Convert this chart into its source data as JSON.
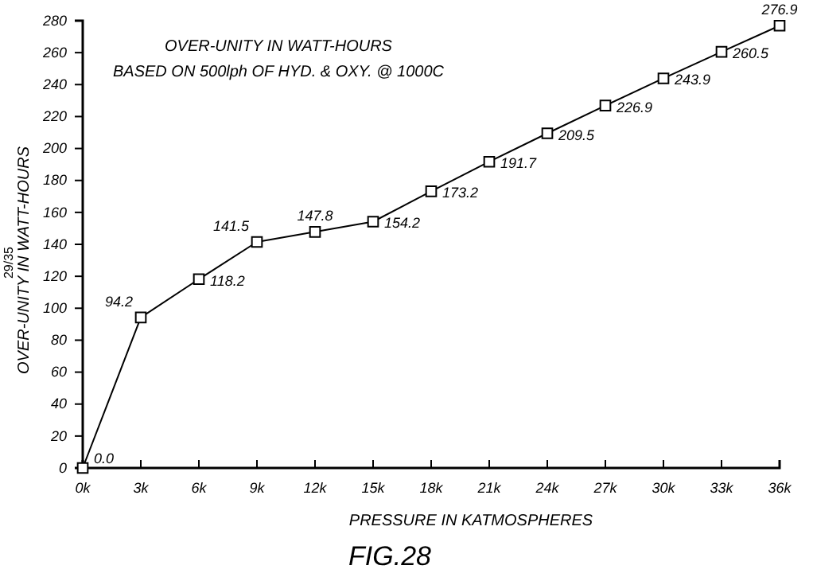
{
  "chart_data": {
    "type": "line",
    "title": "OVER-UNITY IN WATT-HOURS",
    "subtitle": "BASED ON 500lph OF HYD. & OXY. @ 1000C",
    "xlabel": "PRESSURE IN KATMOSPHERES",
    "ylabel": "OVER-UNITY IN WATT-HOURS",
    "annotations": [
      "29/35",
      "FIG.28"
    ],
    "x": [
      0,
      3,
      6,
      9,
      12,
      15,
      18,
      21,
      24,
      27,
      30,
      33,
      36
    ],
    "series": [
      {
        "color": "#000000",
        "values": [
          0,
          94.2,
          118.2,
          141.5,
          147.8,
          154.2,
          173.2,
          191.7,
          209.5,
          226.9,
          243.9,
          260.5,
          276.9
        ],
        "value_labels": [
          "0.0",
          "94.2",
          "118.2",
          "141.5",
          "147.8",
          "154.2",
          "173.2",
          "191.7",
          "209.5",
          "226.9",
          "243.9",
          "260.5",
          "276.9"
        ]
      }
    ],
    "xlim": [
      0,
      36
    ],
    "ylim": [
      0,
      280
    ],
    "xticks": [
      {
        "value": 0,
        "label": "0k"
      },
      {
        "value": 3,
        "label": "3k"
      },
      {
        "value": 6,
        "label": "6k"
      },
      {
        "value": 9,
        "label": "9k"
      },
      {
        "value": 12,
        "label": "12k"
      },
      {
        "value": 15,
        "label": "15k"
      },
      {
        "value": 18,
        "label": "18k"
      },
      {
        "value": 21,
        "label": "21k"
      },
      {
        "value": 24,
        "label": "24k"
      },
      {
        "value": 27,
        "label": "27k"
      },
      {
        "value": 30,
        "label": "30k"
      },
      {
        "value": 33,
        "label": "33k"
      },
      {
        "value": 36,
        "label": "36k"
      }
    ],
    "yticks": [
      0,
      20,
      40,
      60,
      80,
      100,
      120,
      140,
      160,
      180,
      200,
      220,
      240,
      260,
      280
    ],
    "grid": false,
    "marker": "square",
    "line_style": "solid"
  }
}
